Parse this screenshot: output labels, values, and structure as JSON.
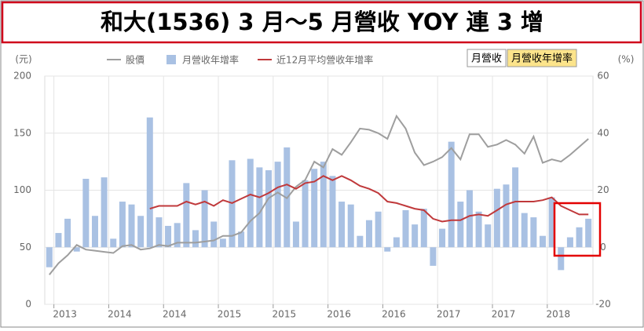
{
  "chart_data": {
    "type": "bar",
    "title": "和大(1536) 3 月～5 月營收 YOY 連 3 增",
    "y_label": "(元)",
    "y2_label": "(%)",
    "categories": [
      null,
      "2013",
      null,
      null,
      null,
      null,
      null,
      "2014",
      null,
      null,
      null,
      null,
      null,
      "2014",
      null,
      null,
      null,
      null,
      null,
      "2015",
      null,
      null,
      null,
      null,
      null,
      "2015",
      null,
      null,
      null,
      null,
      null,
      "2016",
      null,
      null,
      null,
      null,
      null,
      "2016",
      null,
      null,
      null,
      null,
      null,
      "2017",
      null,
      null,
      null,
      null,
      null,
      "2017",
      null,
      null,
      null,
      null,
      null,
      "2018",
      null,
      null,
      null,
      null
    ],
    "series": [
      {
        "name": "股價",
        "type": "line",
        "color": "#9e9e9e",
        "values": [
          26,
          36,
          43,
          52,
          48,
          47,
          46,
          45,
          51,
          52,
          48,
          49,
          52,
          51,
          54,
          54,
          54,
          55,
          56,
          60,
          60,
          63,
          73,
          80,
          93,
          98,
          93,
          103,
          109,
          125,
          120,
          136,
          131,
          142,
          154,
          153,
          150,
          145,
          165,
          154,
          133,
          122,
          125,
          129,
          137,
          127,
          149,
          149,
          138,
          140,
          144,
          140,
          132,
          147,
          124,
          127,
          125,
          131,
          138,
          145
        ]
      },
      {
        "name": "月營收年增率",
        "type": "bar",
        "axis": "y2",
        "color": "#a9c1e3",
        "values": [
          -7,
          5,
          10,
          -1.5,
          24,
          11,
          24.5,
          3,
          16,
          15,
          11,
          45.5,
          10.5,
          7.5,
          8.5,
          22.5,
          6,
          20,
          9,
          3,
          30.5,
          5.5,
          31,
          28,
          27,
          30,
          35,
          9,
          23.5,
          27.5,
          30,
          25,
          16,
          15,
          4,
          9.5,
          12.5,
          -1.5,
          3.5,
          13,
          8,
          13.5,
          -6.5,
          6.5,
          37,
          16,
          20,
          12.5,
          8,
          20.5,
          22,
          28,
          12,
          10.5,
          4,
          17.5,
          -8,
          3.5,
          7,
          10
        ]
      },
      {
        "name": "近12月平均營收年增率",
        "type": "line",
        "axis": "y2",
        "color": "#c0393b",
        "values": [
          null,
          null,
          null,
          null,
          null,
          null,
          null,
          null,
          null,
          null,
          null,
          13.5,
          14.5,
          14.5,
          14.5,
          16,
          15,
          16,
          14.5,
          16.5,
          15.5,
          17,
          18.5,
          17.5,
          19,
          21,
          22,
          20.5,
          22.5,
          23,
          25,
          23.5,
          25,
          23.5,
          21.5,
          20.5,
          19,
          16,
          15.5,
          14.5,
          13.5,
          13,
          10,
          9,
          9.5,
          9.5,
          11,
          11.5,
          11,
          13,
          15,
          16,
          16,
          16,
          16.5,
          17.5,
          14.5,
          13,
          11.5,
          11.5
        ]
      }
    ],
    "ylim": [
      0,
      200
    ],
    "yticks": [
      0,
      50,
      100,
      150,
      200
    ],
    "y2lim": [
      -20,
      60
    ],
    "y2ticks": [
      -20,
      0,
      20,
      40,
      60
    ],
    "grid": true
  },
  "controls": {
    "buttons": [
      "月營收",
      "月營收年增率"
    ],
    "active": 1
  }
}
